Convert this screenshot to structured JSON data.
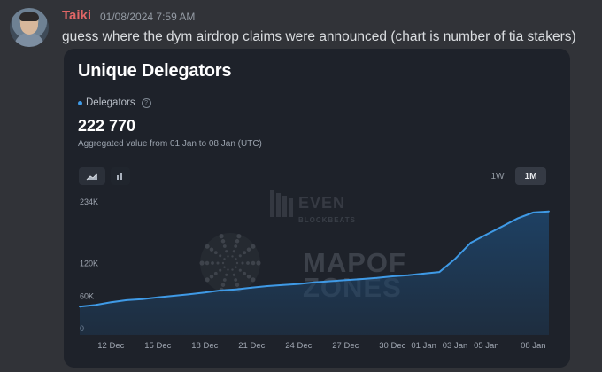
{
  "message": {
    "username": "Taiki",
    "timestamp": "01/08/2024 7:59 AM",
    "text": "guess where the dym airdrop claims were announced (chart is number of tia stakers)"
  },
  "card": {
    "title": "Unique Delegators",
    "legend_label": "Delegators",
    "value": "222 770",
    "aggregated_text": "Aggregated value from 01 Jan to 08 Jan (UTC)",
    "range_buttons": [
      "1W",
      "1M"
    ],
    "selected_range": "1M",
    "watermarks": {
      "top": "BLOCKBEATS",
      "main_line1": "MAPOF",
      "main_line2": "ZONES"
    }
  },
  "chart_data": {
    "type": "area",
    "x": [
      "10 Dec",
      "11 Dec",
      "12 Dec",
      "13 Dec",
      "14 Dec",
      "15 Dec",
      "16 Dec",
      "17 Dec",
      "18 Dec",
      "19 Dec",
      "20 Dec",
      "21 Dec",
      "22 Dec",
      "23 Dec",
      "24 Dec",
      "25 Dec",
      "26 Dec",
      "27 Dec",
      "28 Dec",
      "29 Dec",
      "30 Dec",
      "31 Dec",
      "01 Jan",
      "02 Jan",
      "03 Jan",
      "04 Jan",
      "05 Jan",
      "06 Jan",
      "07 Jan",
      "08 Jan",
      "09 Jan"
    ],
    "y": [
      52,
      55,
      60,
      64,
      66,
      69,
      72,
      75,
      78,
      82,
      84,
      87,
      90,
      92,
      94,
      97,
      99,
      101,
      103,
      105,
      108,
      110,
      113,
      116,
      140,
      170,
      185,
      200,
      215,
      226,
      228
    ],
    "xticks": [
      "12 Dec",
      "15 Dec",
      "18 Dec",
      "21 Dec",
      "24 Dec",
      "27 Dec",
      "30 Dec",
      "01 Jan",
      "03 Jan",
      "05 Jan",
      "08 Jan"
    ],
    "yticks": [
      "0",
      "60K",
      "120K",
      "234K"
    ],
    "ylim": [
      0,
      234
    ],
    "grid": false,
    "line_color": "#3f9ae6",
    "fill_color": "#1e4266"
  }
}
